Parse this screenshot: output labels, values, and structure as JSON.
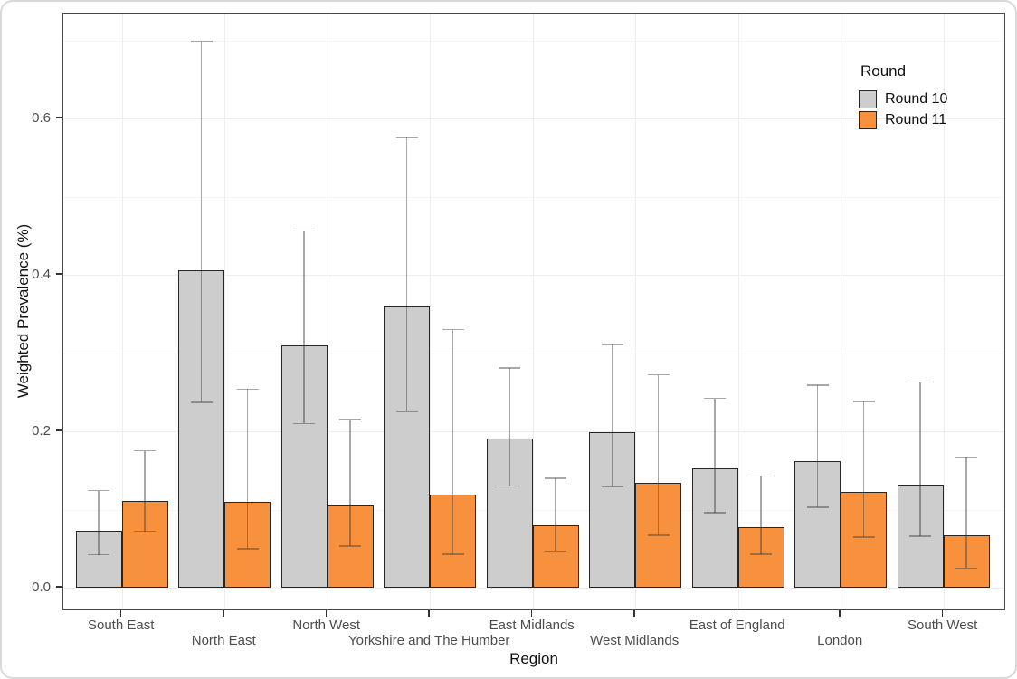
{
  "chart_data": {
    "type": "bar",
    "title": "",
    "xlabel": "Region",
    "ylabel": "Weighted Prevalence (%)",
    "categories": [
      "South East",
      "North East",
      "North West",
      "Yorkshire and The Humber",
      "East Midlands",
      "West Midlands",
      "East of England",
      "London",
      "South West"
    ],
    "series": [
      {
        "name": "Round 10",
        "color": "#CDCDCD",
        "values": [
          0.073,
          0.406,
          0.31,
          0.359,
          0.191,
          0.199,
          0.153,
          0.162,
          0.132
        ],
        "ci_low": [
          0.042,
          0.237,
          0.21,
          0.225,
          0.13,
          0.129,
          0.096,
          0.103,
          0.066
        ],
        "ci_high": [
          0.124,
          0.698,
          0.456,
          0.576,
          0.281,
          0.311,
          0.242,
          0.259,
          0.263
        ]
      },
      {
        "name": "Round 11",
        "color": "#F8913D",
        "values": [
          0.111,
          0.11,
          0.105,
          0.119,
          0.08,
          0.134,
          0.078,
          0.123,
          0.067
        ],
        "ci_low": [
          0.072,
          0.05,
          0.053,
          0.043,
          0.047,
          0.067,
          0.043,
          0.065,
          0.025
        ],
        "ci_high": [
          0.175,
          0.254,
          0.215,
          0.33,
          0.14,
          0.272,
          0.143,
          0.238,
          0.166
        ]
      }
    ],
    "error_bars": true,
    "y_ticks": [
      0.0,
      0.2,
      0.4,
      0.6
    ],
    "y_tick_labels": [
      "0.0",
      "0.2",
      "0.4",
      "0.6"
    ],
    "y_minor_ticks": [
      0.1,
      0.3,
      0.5,
      0.7
    ],
    "ylim": [
      -0.03,
      0.734
    ],
    "grid": true,
    "legend": {
      "title": "Round",
      "position": "top-right-inside"
    }
  }
}
